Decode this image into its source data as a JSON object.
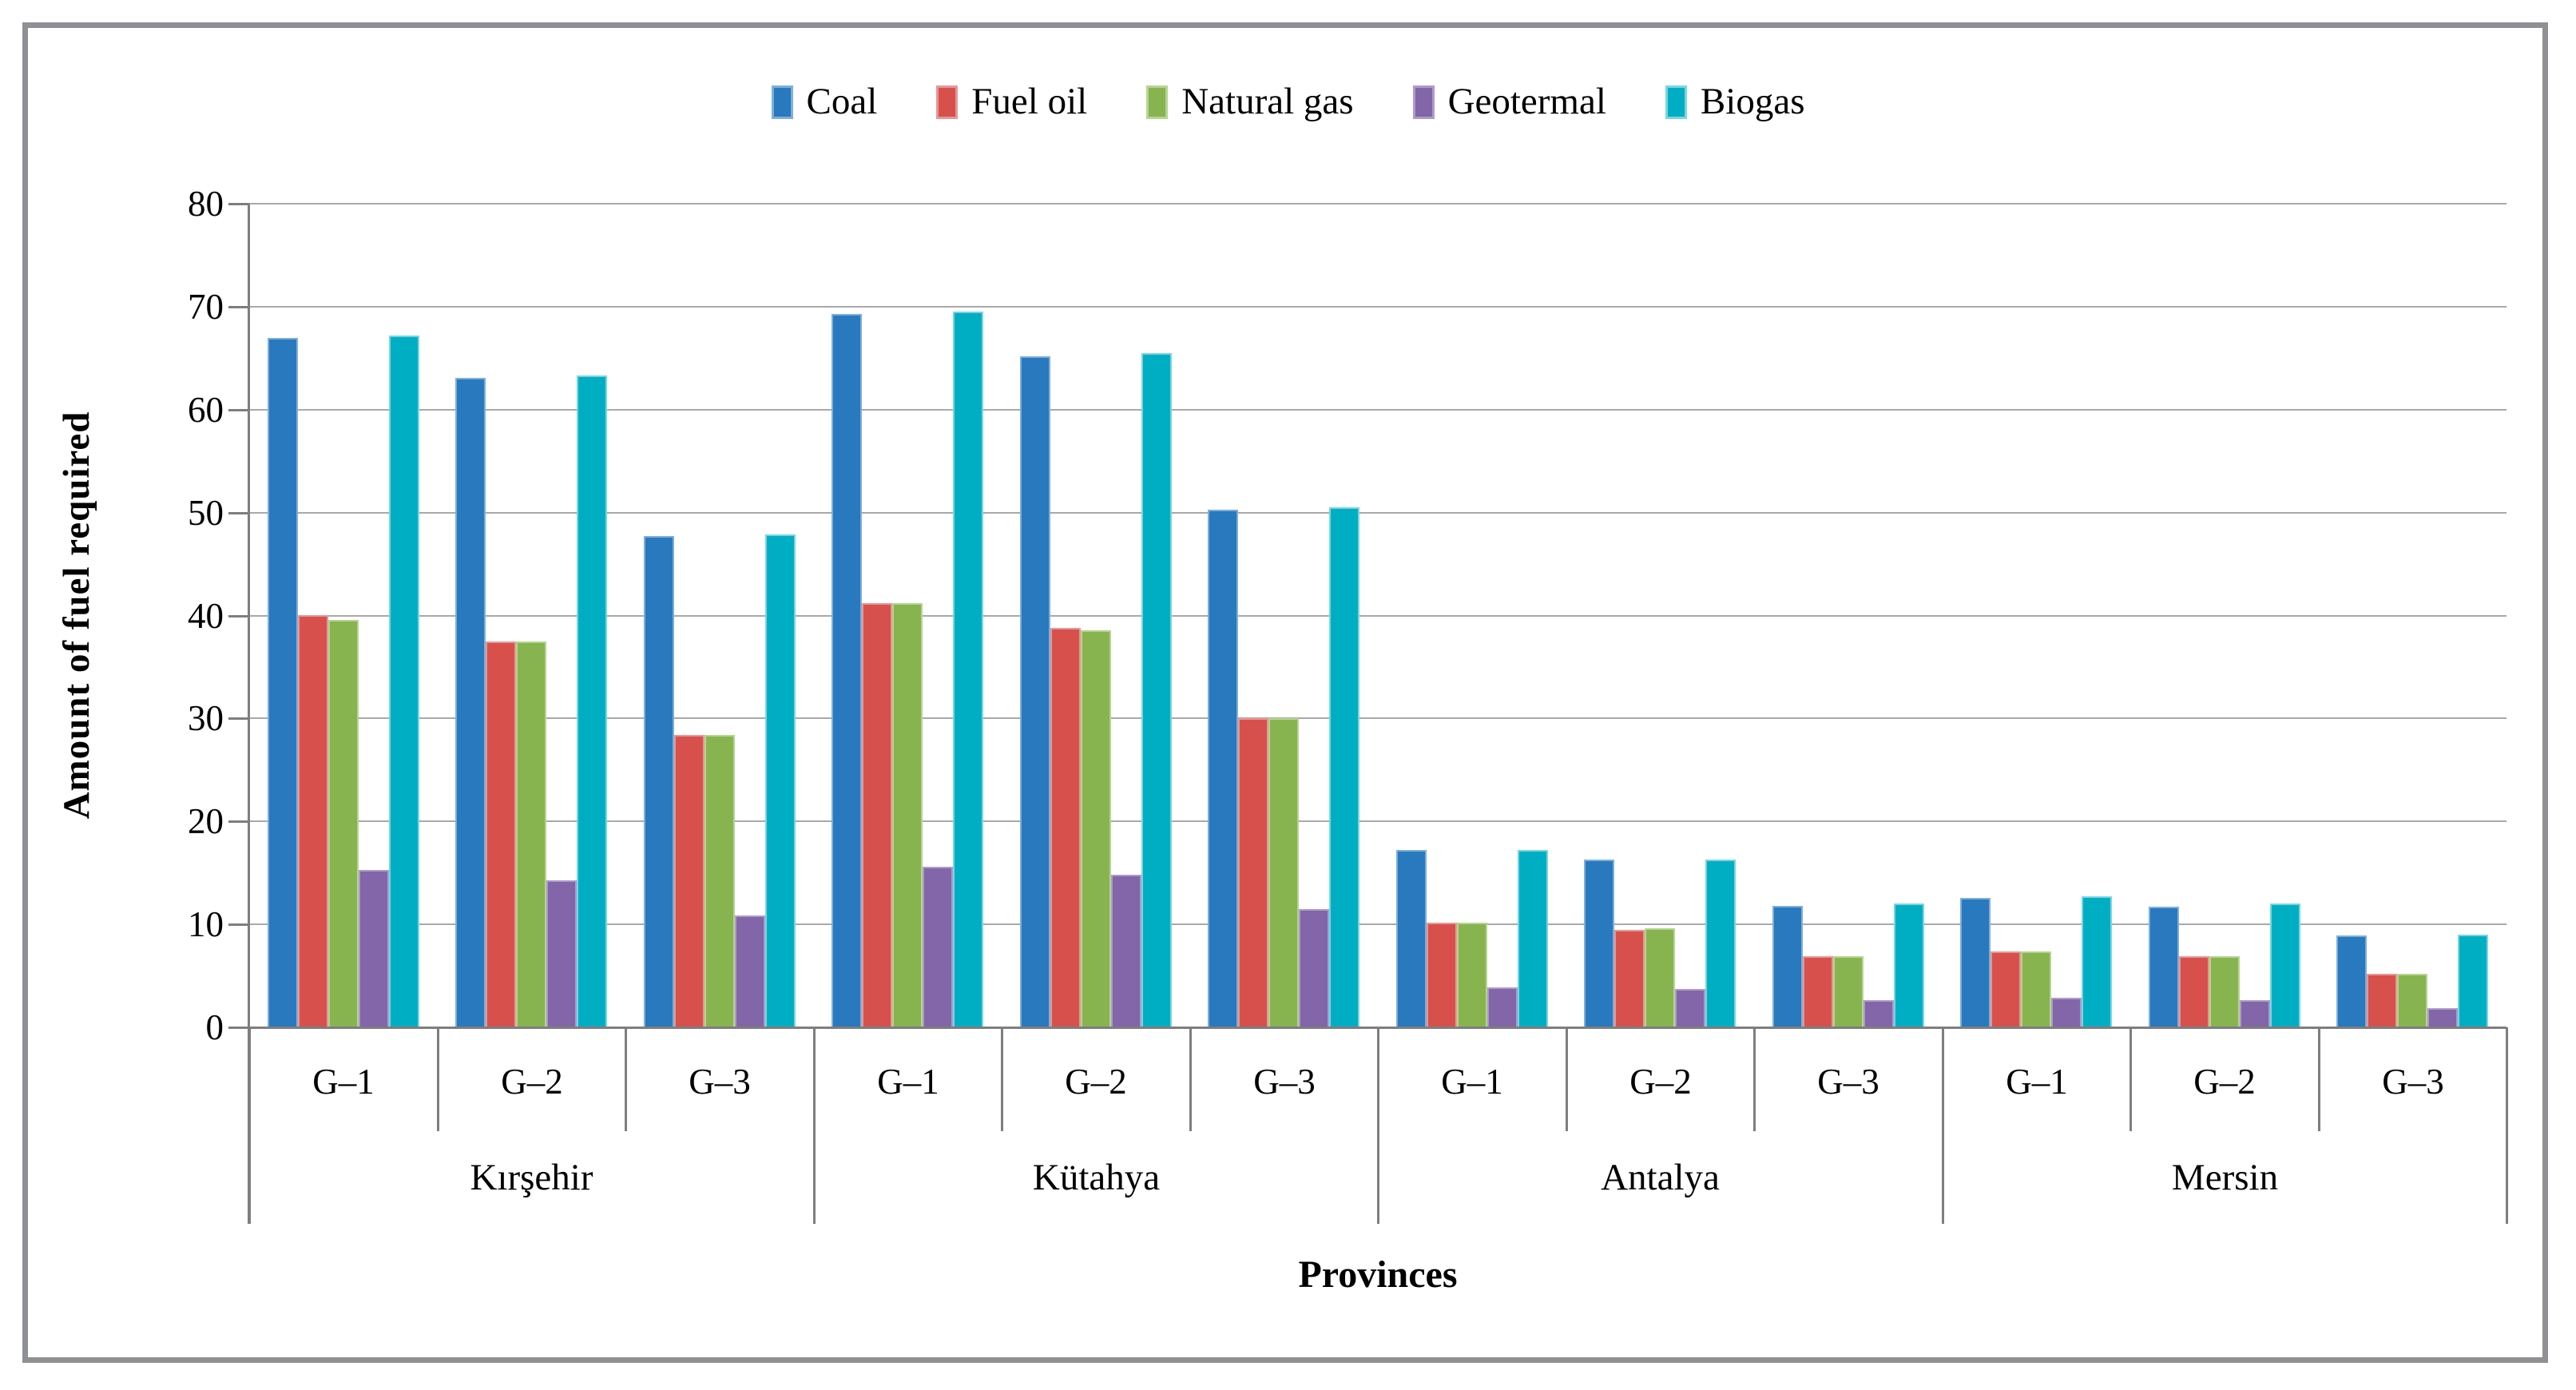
{
  "legend": {
    "position": "top",
    "items": [
      {
        "label": "Coal",
        "color": "#2879BD",
        "edge": "#7EAFD9"
      },
      {
        "label": "Fuel oil",
        "color": "#D8504C",
        "edge": "#E49896"
      },
      {
        "label": "Natural gas",
        "color": "#87B44F",
        "edge": "#B6D492"
      },
      {
        "label": "Geotermal",
        "color": "#8365A9",
        "edge": "#AD9BC9"
      },
      {
        "label": "Biogas",
        "color": "#00AEC3",
        "edge": "#7BD4E0"
      }
    ]
  },
  "colors": {
    "frame": "#8e9093",
    "grid": "#a9a9a9",
    "axis": "#7e7e7e",
    "text": "#000000",
    "background": "#ffffff"
  },
  "chart_data": {
    "type": "bar",
    "title": "",
    "xlabel": "Provinces",
    "ylabel": "Amount of fuel required",
    "ylim": [
      0,
      80
    ],
    "ytick_step": 10,
    "yticks": [
      0,
      10,
      20,
      30,
      40,
      50,
      60,
      70,
      80
    ],
    "grid": true,
    "legend_position": "top",
    "provinces": [
      "Kırşehir",
      "Kütahya",
      "Antalya",
      "Mersin"
    ],
    "groups_per_province": [
      "G–1",
      "G–2",
      "G–3"
    ],
    "categories": [
      "Kırşehir G–1",
      "Kırşehir G–2",
      "Kırşehir G–3",
      "Kütahya G–1",
      "Kütahya G–2",
      "Kütahya G–3",
      "Antalya G–1",
      "Antalya G–2",
      "Antalya G–3",
      "Mersin G–1",
      "Mersin G–2",
      "Mersin G–3"
    ],
    "series": [
      {
        "name": "Coal",
        "color": "#2879BD",
        "edge": "#7EAFD9",
        "values": [
          67.0,
          63.1,
          47.7,
          69.3,
          65.2,
          50.3,
          17.2,
          16.3,
          11.8,
          12.6,
          11.7,
          8.9
        ]
      },
      {
        "name": "Fuel oil",
        "color": "#D8504C",
        "edge": "#E49896",
        "values": [
          40.0,
          37.5,
          28.4,
          41.2,
          38.8,
          30.0,
          10.2,
          9.5,
          6.9,
          7.4,
          6.9,
          5.2
        ]
      },
      {
        "name": "Natural gas",
        "color": "#87B44F",
        "edge": "#B6D492",
        "values": [
          39.6,
          37.5,
          28.4,
          41.2,
          38.6,
          30.0,
          10.2,
          9.6,
          6.9,
          7.4,
          6.9,
          5.2
        ]
      },
      {
        "name": "Geotermal",
        "color": "#8365A9",
        "edge": "#AD9BC9",
        "values": [
          15.3,
          14.3,
          10.9,
          15.6,
          14.8,
          11.5,
          3.9,
          3.7,
          2.6,
          2.9,
          2.6,
          1.9
        ]
      },
      {
        "name": "Biogas",
        "color": "#00AEC3",
        "edge": "#7BD4E0",
        "values": [
          67.2,
          63.3,
          47.9,
          69.5,
          65.5,
          50.5,
          17.2,
          16.3,
          12.0,
          12.7,
          12.0,
          9.0
        ]
      }
    ]
  }
}
